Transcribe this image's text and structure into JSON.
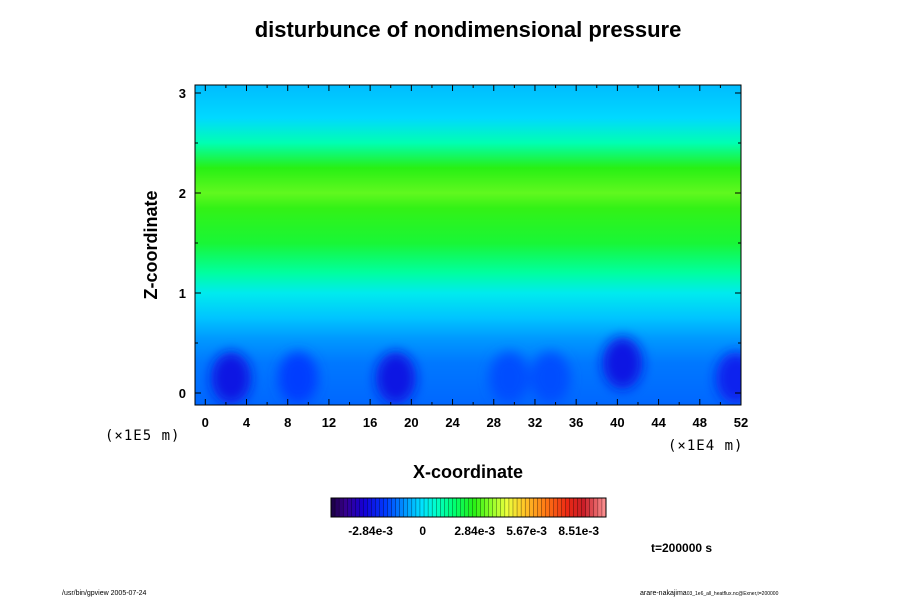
{
  "chart_data": {
    "type": "heatmap",
    "title": "disturbunce of nondimensional pressure",
    "xlabel": "X-coordinate",
    "ylabel": "Z-coordinate",
    "x_scale_note": "(×1E4 m)",
    "y_scale_note": "(×1E5 m)",
    "xlim": [
      -1,
      52
    ],
    "ylim": [
      -0.12,
      3.08
    ],
    "x_ticks": [
      "0",
      "4",
      "8",
      "12",
      "16",
      "20",
      "24",
      "28",
      "32",
      "36",
      "40",
      "44",
      "48",
      "52"
    ],
    "y_ticks": [
      "0",
      "1",
      "2",
      "3"
    ],
    "colorbar": {
      "range": [
        -0.005,
        0.01
      ],
      "labels": [
        "-2.84e-3",
        "0",
        "2.84e-3",
        "5.67e-3",
        "8.51e-3"
      ]
    },
    "vertical_profile": [
      {
        "z": -0.12,
        "value": -0.0015
      },
      {
        "z": 0.3,
        "value": -0.0013
      },
      {
        "z": 0.55,
        "value": -0.0009
      },
      {
        "z": 0.75,
        "value": -0.0004
      },
      {
        "z": 1.0,
        "value": 0.0002
      },
      {
        "z": 1.2,
        "value": 0.0012
      },
      {
        "z": 1.5,
        "value": 0.0024
      },
      {
        "z": 1.85,
        "value": 0.0029
      },
      {
        "z": 2.0,
        "value": 0.0033
      },
      {
        "z": 2.25,
        "value": 0.0028
      },
      {
        "z": 2.5,
        "value": 0.001
      },
      {
        "z": 2.75,
        "value": -0.00015
      },
      {
        "z": 3.08,
        "value": -0.0005
      }
    ],
    "low_pressure_cells": [
      {
        "x": 2.5,
        "z": 0.15,
        "value": -0.00284
      },
      {
        "x": 9,
        "z": 0.15,
        "value": -0.002
      },
      {
        "x": 18.5,
        "z": 0.15,
        "value": -0.00284
      },
      {
        "x": 29.5,
        "z": 0.15,
        "value": -0.0018
      },
      {
        "x": 33.5,
        "z": 0.15,
        "value": -0.0018
      },
      {
        "x": 40.5,
        "z": 0.3,
        "value": -0.00284
      },
      {
        "x": 51.5,
        "z": 0.15,
        "value": -0.0025
      }
    ]
  },
  "time_label": "t=200000 s",
  "footer": {
    "left": "/usr/bin/gpview 2005-07-24",
    "right_main": "arare-nakajima",
    "right_small": "03_1e6_all_heatflux.nc@Exner,t=200000"
  }
}
